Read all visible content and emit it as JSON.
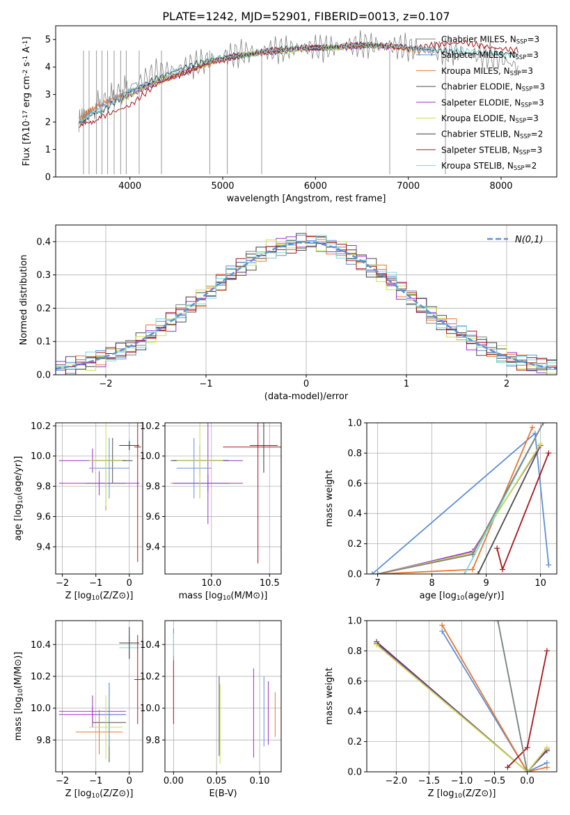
{
  "colors": {
    "chabrier_miles": "#808080",
    "salpeter_miles": "#5b8fd9",
    "kroupa_miles": "#e8762d",
    "chabrier_elodie": "#4a4a4a",
    "salpeter_elodie": "#9b30c8",
    "kroupa_elodie": "#c8e04a",
    "chabrier_stelib": "#3a3a3a",
    "salpeter_stelib": "#a81418",
    "kroupa_stelib": "#78d8dc",
    "gauss": "#5b8fd9",
    "grid": "#b0b0b0"
  },
  "chart_data": [
    {
      "id": "spectrum",
      "type": "line",
      "title": "PLATE=1242, MJD=52901, FIBERID=0013, z=0.107",
      "xlabel": "wavelength [Angstrom, rest frame]",
      "ylabel": "Flux [f$_\\lambda$10$^{-17}$ erg cm$^{-2}$ s$^{-1}$ A$^{-1}$]",
      "xlim": [
        3200,
        8600
      ],
      "ylim": [
        0,
        5.5
      ],
      "xticks": [
        "4000",
        "5000",
        "6000",
        "7000",
        "8000"
      ],
      "yticks": [
        "0",
        "1",
        "2",
        "3",
        "4",
        "5"
      ],
      "legend_position": "upper-right",
      "series": [
        {
          "name": "Chabrier MILES, N$_{SSP}$=3",
          "color": "#808080",
          "x": [
            3450,
            3600,
            3800,
            4000,
            4300,
            4600,
            4900,
            5200,
            5500,
            5800,
            6100,
            6400,
            6700,
            7000,
            7300,
            7600,
            7900,
            8200
          ],
          "values": [
            2.0,
            2.5,
            2.9,
            3.3,
            3.8,
            4.0,
            4.3,
            4.5,
            4.6,
            4.7,
            4.7,
            4.8,
            4.8,
            4.7,
            4.6,
            4.5,
            4.4,
            4.0
          ]
        },
        {
          "name": "Salpeter MILES, N$_{SSP}$=3",
          "color": "#5b8fd9",
          "x": [
            3450,
            3600,
            3800,
            4000,
            4300,
            4600,
            4900,
            5200,
            5500,
            5800,
            6100,
            6400,
            6700,
            7000,
            7300
          ],
          "values": [
            2.0,
            2.4,
            2.8,
            3.1,
            3.5,
            3.8,
            4.2,
            4.4,
            4.6,
            4.7,
            4.7,
            4.8,
            4.8,
            4.7,
            4.6
          ]
        },
        {
          "name": "Kroupa MILES, N$_{SSP}$=3",
          "color": "#e8762d",
          "x": [
            3450,
            3600,
            3800,
            4000,
            4300,
            4600,
            4900,
            5200,
            5500,
            5800,
            6100,
            6400,
            6700,
            7000,
            7300
          ],
          "values": [
            2.1,
            2.5,
            2.8,
            3.1,
            3.5,
            3.8,
            4.2,
            4.4,
            4.6,
            4.7,
            4.7,
            4.8,
            4.8,
            4.6,
            4.6
          ]
        },
        {
          "name": "Chabrier ELODIE, N$_{SSP}$=3",
          "color": "#4a4a4a",
          "x": [
            3900,
            4200,
            4500,
            4800,
            5100,
            5400,
            5700,
            6000,
            6300,
            6600,
            6800
          ],
          "values": [
            2.8,
            3.3,
            3.7,
            4.1,
            4.4,
            4.5,
            4.6,
            4.7,
            4.7,
            4.8,
            4.7
          ]
        },
        {
          "name": "Salpeter ELODIE, N$_{SSP}$=3",
          "color": "#9b30c8",
          "x": [
            3900,
            4200,
            4500,
            4800,
            5100,
            5400,
            5700,
            6000,
            6300,
            6600,
            6800
          ],
          "values": [
            2.8,
            3.3,
            3.7,
            4.1,
            4.4,
            4.5,
            4.6,
            4.7,
            4.7,
            4.8,
            4.7
          ]
        },
        {
          "name": "Kroupa ELODIE, N$_{SSP}$=3",
          "color": "#c8e04a",
          "x": [
            3900,
            4200,
            4500,
            4800,
            5100,
            5400,
            5700,
            6000,
            6300,
            6600,
            6800
          ],
          "values": [
            2.8,
            3.3,
            3.7,
            4.1,
            4.4,
            4.5,
            4.6,
            4.7,
            4.7,
            4.8,
            4.7
          ]
        },
        {
          "name": "Chabrier STELIB, N$_{SSP}$=2",
          "color": "#3a3a3a",
          "x": [
            3450,
            3700,
            4000,
            4300,
            4600,
            4900,
            5200,
            5500,
            5800,
            6100,
            6400,
            6700,
            7000,
            7300,
            7600,
            7900,
            8200
          ],
          "values": [
            2.0,
            2.4,
            3.1,
            3.6,
            4.0,
            4.3,
            4.4,
            4.6,
            4.7,
            4.7,
            4.8,
            4.8,
            4.7,
            4.6,
            4.5,
            4.5,
            4.5
          ]
        },
        {
          "name": "Salpeter STELIB, N$_{SSP}$=3",
          "color": "#a81418",
          "x": [
            3450,
            3700,
            4000,
            4300,
            4600,
            4900,
            5200,
            5500,
            5800,
            6100,
            6400,
            6700,
            7000,
            7300,
            7600,
            7900,
            8200
          ],
          "values": [
            1.8,
            2.2,
            2.6,
            3.4,
            3.8,
            4.2,
            4.4,
            4.6,
            4.7,
            4.7,
            4.8,
            4.8,
            4.7,
            4.8,
            4.9,
            4.7,
            4.6
          ]
        },
        {
          "name": "Kroupa STELIB, N$_{SSP}$=2",
          "color": "#78d8dc",
          "x": [
            3450,
            3700,
            4000,
            4300,
            4600,
            4900,
            5200,
            5500,
            5800,
            6100,
            6400,
            6700,
            7000,
            7300,
            7600,
            7900,
            8200
          ],
          "values": [
            2.1,
            2.4,
            3.1,
            3.6,
            4.0,
            4.3,
            4.4,
            4.6,
            4.7,
            4.7,
            4.8,
            4.8,
            4.7,
            4.6,
            4.6,
            4.5,
            4.4
          ]
        }
      ]
    },
    {
      "id": "residuals",
      "type": "line",
      "xlabel": "(data-model)/error",
      "ylabel": "Normed distribution",
      "xlim": [
        -2.5,
        2.5
      ],
      "ylim": [
        0,
        0.45
      ],
      "xticks": [
        "−2",
        "−1",
        "0",
        "1",
        "2"
      ],
      "yticks": [
        "0.0",
        "0.1",
        "0.2",
        "0.3",
        "0.4"
      ],
      "legend_position": "upper-right",
      "x": [
        -2.5,
        -2.3,
        -2.1,
        -1.9,
        -1.7,
        -1.5,
        -1.3,
        -1.1,
        -0.9,
        -0.7,
        -0.5,
        -0.3,
        -0.1,
        0.1,
        0.3,
        0.5,
        0.7,
        0.9,
        1.1,
        1.3,
        1.5,
        1.7,
        1.9,
        2.1,
        2.3,
        2.5
      ],
      "series": [
        {
          "name": "$\\mathcal{N}(0,1)$",
          "color": "#5b8fd9",
          "style": "dashed",
          "values": [
            0.018,
            0.028,
            0.044,
            0.066,
            0.094,
            0.13,
            0.171,
            0.218,
            0.266,
            0.312,
            0.352,
            0.381,
            0.397,
            0.397,
            0.381,
            0.352,
            0.312,
            0.266,
            0.218,
            0.171,
            0.13,
            0.094,
            0.066,
            0.044,
            0.028,
            0.018
          ]
        }
      ]
    },
    {
      "id": "age_vs_Z",
      "type": "scatter",
      "xlabel": "Z [log$_{10}$($Z/Z_\\odot$)]",
      "ylabel": "age  [log$_{10}$($age/yr$)]",
      "xlim": [
        -2.2,
        0.4
      ],
      "ylim": [
        9.22,
        10.22
      ],
      "xticks": [
        "−2",
        "−1",
        "0"
      ],
      "yticks": [
        "9.4",
        "9.6",
        "9.8",
        "10.0",
        "10.2"
      ],
      "points": [
        {
          "x": -1.1,
          "y": 9.97,
          "xerr": 1.0,
          "yerr": 0.08,
          "color": "#9b30c8"
        },
        {
          "x": -0.5,
          "y": 9.97,
          "xerr": 0.6,
          "yerr": 0.15,
          "color": "#4a4a4a"
        },
        {
          "x": -0.7,
          "y": 9.82,
          "xerr": 0.6,
          "yerr": 0.18,
          "color": "#e8762d"
        },
        {
          "x": -0.9,
          "y": 9.82,
          "xerr": 1.2,
          "yerr": 0.08,
          "color": "#9b30c8"
        },
        {
          "x": -0.6,
          "y": 9.92,
          "xerr": 0.6,
          "yerr": 0.2,
          "color": "#5b8fd9"
        },
        {
          "x": -0.7,
          "y": 9.97,
          "xerr": 0.5,
          "yerr": 0.3,
          "color": "#c8e04a"
        },
        {
          "x": 0.0,
          "y": 10.07,
          "xerr": 0.3,
          "yerr": 0.05,
          "color": "#78d8dc"
        },
        {
          "x": 0.25,
          "y": 10.06,
          "xerr": 0.1,
          "yerr": 0.76,
          "color": "#a81418"
        },
        {
          "x": 0.0,
          "y": 10.07,
          "xerr": 0.3,
          "yerr": 0.03,
          "color": "#3a3a3a"
        }
      ]
    },
    {
      "id": "age_vs_mass",
      "type": "scatter",
      "xlabel": "mass [log$_{10}$($M/M_\\odot$)]",
      "ylabel": "",
      "xlim": [
        9.6,
        10.6
      ],
      "ylim": [
        9.22,
        10.22
      ],
      "xticks": [
        "10.0",
        "10.5"
      ],
      "yticks": [
        "9.4",
        "9.6",
        "9.8",
        "10.0",
        "10.2"
      ],
      "points": [
        {
          "x": 9.97,
          "y": 9.97,
          "xerr": 0.3,
          "yerr": 0.42,
          "color": "#9b30c8"
        },
        {
          "x": 9.9,
          "y": 9.97,
          "xerr": 0.25,
          "yerr": 0.1,
          "color": "#4a4a4a"
        },
        {
          "x": 9.9,
          "y": 9.82,
          "xerr": 0.25,
          "yerr": 0.1,
          "color": "#e8762d"
        },
        {
          "x": 9.97,
          "y": 9.82,
          "xerr": 0.3,
          "yerr": 0.06,
          "color": "#9b30c8"
        },
        {
          "x": 9.85,
          "y": 9.92,
          "xerr": 0.15,
          "yerr": 0.2,
          "color": "#5b8fd9"
        },
        {
          "x": 9.9,
          "y": 9.97,
          "xerr": 0.2,
          "yerr": 0.25,
          "color": "#c8e04a"
        },
        {
          "x": 10.45,
          "y": 10.07,
          "xerr": 0.1,
          "yerr": 0.15,
          "color": "#78d8dc"
        },
        {
          "x": 10.4,
          "y": 10.06,
          "xerr": 0.3,
          "yerr": 0.77,
          "color": "#a81418"
        },
        {
          "x": 10.45,
          "y": 10.07,
          "xerr": 0.12,
          "yerr": 0.18,
          "color": "#3a3a3a"
        }
      ]
    },
    {
      "id": "massweight_vs_age",
      "type": "line",
      "xlabel": "age  [log$_{10}$($age/yr$)]",
      "ylabel": "mass weight",
      "xlim": [
        6.8,
        10.3
      ],
      "ylim": [
        0,
        1
      ],
      "xticks": [
        "7",
        "8",
        "9",
        "10"
      ],
      "yticks": [
        "0.0",
        "0.2",
        "0.4",
        "0.6",
        "0.8",
        "1.0"
      ],
      "series": [
        {
          "name": "",
          "color": "#5b8fd9",
          "x": [
            6.9,
            9.9,
            10.15
          ],
          "values": [
            0.0,
            0.93,
            0.06
          ]
        },
        {
          "name": "",
          "color": "#e8762d",
          "x": [
            7.0,
            8.75,
            9.85
          ],
          "values": [
            0.0,
            0.03,
            0.97
          ]
        },
        {
          "name": "",
          "color": "#4a4a4a",
          "x": [
            8.85,
            10.0
          ],
          "values": [
            0.0,
            0.85
          ]
        },
        {
          "name": "",
          "color": "#9b30c8",
          "x": [
            7.0,
            8.75,
            10.0
          ],
          "values": [
            0.0,
            0.15,
            0.85
          ]
        },
        {
          "name": "",
          "color": "#c8e04a",
          "x": [
            7.0,
            8.75,
            10.0
          ],
          "values": [
            0.0,
            0.14,
            0.86
          ]
        },
        {
          "name": "",
          "color": "#78d8dc",
          "x": [
            8.6,
            10.05
          ],
          "values": [
            0.0,
            1.0
          ]
        },
        {
          "name": "",
          "color": "#a81418",
          "x": [
            9.2,
            9.3,
            10.15
          ],
          "values": [
            0.17,
            0.03,
            0.8
          ]
        },
        {
          "name": "",
          "color": "#808080",
          "x": [
            7.0,
            8.75,
            10.05
          ],
          "values": [
            0.0,
            0.13,
            1.0
          ]
        }
      ]
    },
    {
      "id": "mass_vs_Z",
      "type": "scatter",
      "xlabel": "Z [log$_{10}$($Z/Z_\\odot$)]",
      "ylabel": "mass [log$_{10}$($M/M_\\odot$)]",
      "xlim": [
        -2.2,
        0.4
      ],
      "ylim": [
        9.6,
        10.55
      ],
      "xticks": [
        "−2",
        "−1",
        "0"
      ],
      "yticks": [
        "9.8",
        "10.0",
        "10.2",
        "10.4"
      ],
      "points": [
        {
          "x": -1.1,
          "y": 9.98,
          "xerr": 1.0,
          "yerr": 0.1,
          "color": "#9b30c8"
        },
        {
          "x": -0.6,
          "y": 9.91,
          "xerr": 0.5,
          "yerr": 0.25,
          "color": "#4a4a4a"
        },
        {
          "x": -0.9,
          "y": 9.85,
          "xerr": 0.7,
          "yerr": 0.14,
          "color": "#e8762d"
        },
        {
          "x": -1.1,
          "y": 9.96,
          "xerr": 1.0,
          "yerr": 0.05,
          "color": "#9b30c8"
        },
        {
          "x": -0.6,
          "y": 9.96,
          "xerr": 0.4,
          "yerr": 0.2,
          "color": "#5b8fd9"
        },
        {
          "x": -0.7,
          "y": 9.88,
          "xerr": 0.5,
          "yerr": 0.2,
          "color": "#c8e04a"
        },
        {
          "x": 0.0,
          "y": 10.38,
          "xerr": 0.3,
          "yerr": 0.08,
          "color": "#78d8dc"
        },
        {
          "x": 0.25,
          "y": 10.18,
          "xerr": 0.1,
          "yerr": 0.28,
          "color": "#a81418"
        },
        {
          "x": 0.0,
          "y": 10.41,
          "xerr": 0.3,
          "yerr": 0.1,
          "color": "#3a3a3a"
        }
      ]
    },
    {
      "id": "mass_vs_ebv",
      "type": "scatter",
      "xlabel": "E(B-V)",
      "ylabel": "",
      "xlim": [
        -0.01,
        0.125
      ],
      "ylim": [
        9.6,
        10.55
      ],
      "xticks": [
        "0.00",
        "0.05",
        "0.10"
      ],
      "yticks": [
        "9.8",
        "10.0",
        "10.2",
        "10.4"
      ],
      "points": [
        {
          "x": 0.0,
          "y": 10.4,
          "xerr": 0,
          "yerr": 0.1,
          "color": "#808080"
        },
        {
          "x": 0.0,
          "y": 10.1,
          "xerr": 0,
          "yerr": 0.2,
          "color": "#a81418"
        },
        {
          "x": 0.0,
          "y": 10.4,
          "xerr": 0,
          "yerr": 0.07,
          "color": "#78d8dc"
        },
        {
          "x": 0.053,
          "y": 9.95,
          "xerr": 0,
          "yerr": 0.25,
          "color": "#4a4a4a"
        },
        {
          "x": 0.054,
          "y": 9.9,
          "xerr": 0,
          "yerr": 0.25,
          "color": "#c8e04a"
        },
        {
          "x": 0.093,
          "y": 9.97,
          "xerr": 0,
          "yerr": 0.28,
          "color": "#9b30c8"
        },
        {
          "x": 0.105,
          "y": 9.98,
          "xerr": 0,
          "yerr": 0.22,
          "color": "#5b8fd9"
        },
        {
          "x": 0.11,
          "y": 9.97,
          "xerr": 0,
          "yerr": 0.2,
          "color": "#9b30c8"
        },
        {
          "x": 0.118,
          "y": 9.96,
          "xerr": 0,
          "yerr": 0.14,
          "color": "#e8762d"
        }
      ]
    },
    {
      "id": "massweight_vs_Z",
      "type": "line",
      "xlabel": "Z [log$_{10}$($Z/Z_\\odot$)]",
      "ylabel": "mass weight",
      "xlim": [
        -2.45,
        0.45
      ],
      "ylim": [
        0,
        1
      ],
      "xticks": [
        "−2.0",
        "−1.5",
        "−1.0",
        "−0.5",
        "0.0"
      ],
      "yticks": [
        "0.0",
        "0.2",
        "0.4",
        "0.6",
        "0.8",
        "1.0"
      ],
      "series": [
        {
          "name": "",
          "color": "#5b8fd9",
          "x": [
            -1.3,
            0.0,
            0.3
          ],
          "values": [
            0.93,
            0.0,
            0.06
          ]
        },
        {
          "name": "",
          "color": "#e8762d",
          "x": [
            -1.3,
            0.0,
            0.3
          ],
          "values": [
            0.97,
            0.0,
            0.03
          ]
        },
        {
          "name": "",
          "color": "#4a4a4a",
          "x": [
            -2.3,
            0.0,
            0.3
          ],
          "values": [
            0.86,
            0.0,
            0.14
          ]
        },
        {
          "name": "",
          "color": "#9b30c8",
          "x": [
            -2.3,
            0.0,
            0.3
          ],
          "values": [
            0.85,
            0.0,
            0.15
          ]
        },
        {
          "name": "",
          "color": "#c8e04a",
          "x": [
            -2.3,
            0.0,
            0.3
          ],
          "values": [
            0.84,
            0.0,
            0.16
          ]
        },
        {
          "name": "",
          "color": "#78d8dc",
          "x": [
            -0.45,
            0.0
          ],
          "values": [
            1.0,
            0.0
          ]
        },
        {
          "name": "",
          "color": "#a81418",
          "x": [
            -0.3,
            0.0,
            0.3
          ],
          "values": [
            0.03,
            0.16,
            0.8
          ]
        },
        {
          "name": "",
          "color": "#808080",
          "x": [
            -0.45,
            0.0
          ],
          "values": [
            1.0,
            0.0
          ]
        }
      ]
    }
  ]
}
